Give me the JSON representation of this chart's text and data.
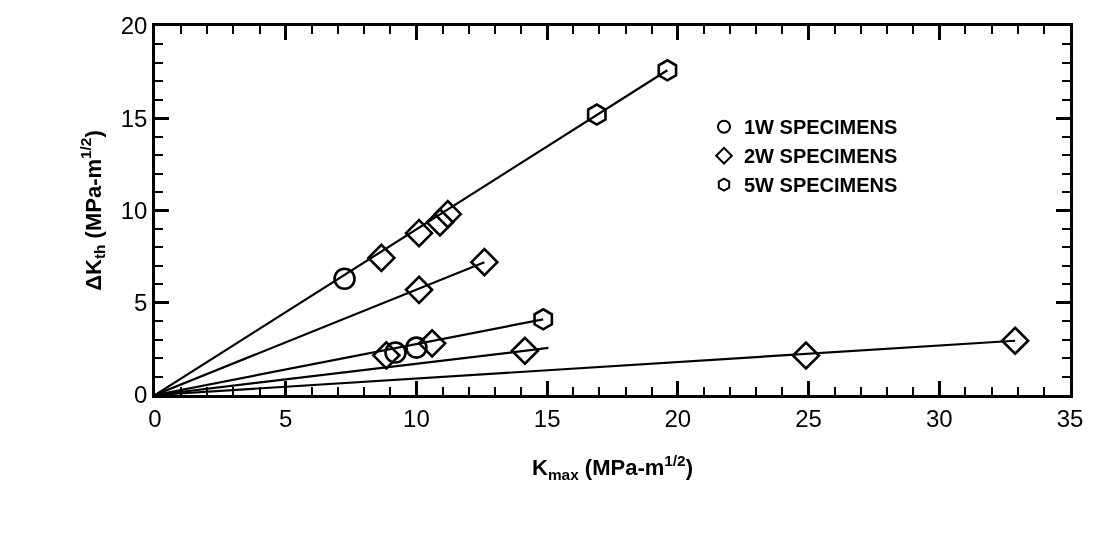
{
  "chart_data": {
    "type": "scatter",
    "xlabel": "K$_{max}$ (MPa-m$^{1/2}$)",
    "ylabel": "ΔK$_{th}$ (MPa-m$^{1/2}$)",
    "xlim": [
      0,
      35
    ],
    "xticks": [
      0,
      5,
      10,
      15,
      20,
      25,
      30,
      35
    ],
    "ylim": [
      0,
      20
    ],
    "yticks": [
      0,
      5,
      10,
      15,
      20
    ],
    "legend": "top right",
    "series": [
      {
        "type": "line",
        "color": "#000000",
        "marker": "none",
        "line_style": "solid",
        "x": [
          0,
          19.6
        ],
        "values": [
          0,
          17.6
        ]
      },
      {
        "type": "line",
        "color": "#000000",
        "marker": "none",
        "line_style": "solid",
        "x": [
          0,
          12.6
        ],
        "values": [
          0,
          7.2
        ]
      },
      {
        "type": "line",
        "color": "#000000",
        "marker": "none",
        "line_style": "solid",
        "x": [
          0,
          14.85
        ],
        "values": [
          0,
          4.1
        ]
      },
      {
        "type": "line",
        "color": "#000000",
        "marker": "none",
        "line_style": "solid",
        "x": [
          0,
          15.05
        ],
        "values": [
          0,
          2.55
        ]
      },
      {
        "type": "line",
        "color": "#000000",
        "marker": "none",
        "line_style": "solid",
        "x": [
          0,
          32.9
        ],
        "values": [
          0,
          2.94
        ]
      },
      {
        "name": "1W SPECIMENS",
        "color": "#000000",
        "marker": "circle",
        "x": [
          7.25,
          9.2,
          10.0
        ],
        "values": [
          6.3,
          2.3,
          2.57
        ]
      },
      {
        "name": "2W SPECIMENS",
        "color": "#000000",
        "marker": "diamond",
        "x": [
          8.66,
          10.1,
          10.9,
          11.2,
          10.1,
          12.6,
          8.85,
          10.6,
          14.15,
          24.9,
          32.9
        ],
        "values": [
          7.43,
          8.77,
          9.36,
          9.8,
          5.7,
          7.2,
          2.15,
          2.8,
          2.4,
          2.14,
          2.94
        ]
      },
      {
        "name": "5W SPECIMENS",
        "color": "#000000",
        "x": [
          16.9,
          19.6,
          14.85
        ],
        "values": [
          15.2,
          17.6,
          4.1
        ]
      }
    ]
  }
}
